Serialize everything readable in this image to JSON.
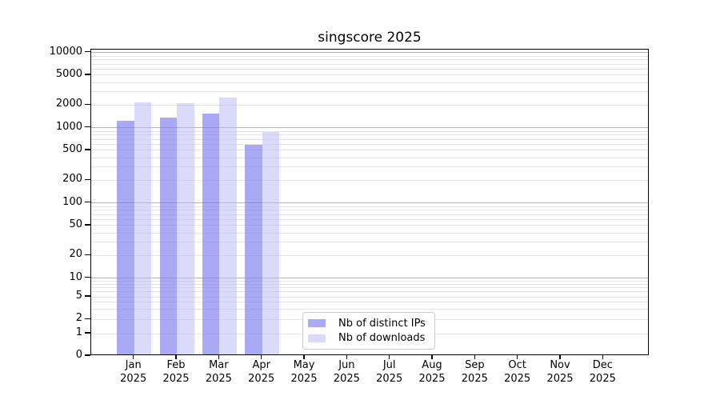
{
  "chart_data": {
    "type": "bar",
    "title": "singscore 2025",
    "xlabel": "",
    "ylabel": "",
    "y_scale": "symlog",
    "categories": [
      "Jan",
      "Feb",
      "Mar",
      "Apr",
      "May",
      "Jun",
      "Jul",
      "Aug",
      "Sep",
      "Oct",
      "Nov",
      "Dec"
    ],
    "category_year": "2025",
    "series": [
      {
        "name": "Nb of distinct IPs",
        "color": "rgba(124,124,238,0.65)",
        "values": [
          1250,
          1350,
          1550,
          600,
          null,
          null,
          null,
          null,
          null,
          null,
          null,
          null
        ]
      },
      {
        "name": "Nb of downloads",
        "color": "rgba(182,182,248,0.5)",
        "values": [
          2150,
          2100,
          2500,
          880,
          null,
          null,
          null,
          null,
          null,
          null,
          null,
          null
        ]
      }
    ],
    "y_ticks": [
      0,
      1,
      2,
      5,
      10,
      20,
      50,
      100,
      200,
      500,
      1000,
      2000,
      5000,
      10000
    ],
    "ylim": [
      0,
      10900
    ],
    "grid": "horizontal",
    "legend_position": "lower center",
    "colors": {
      "major_grid": "#b4b4b4",
      "minor_grid": "#e4e4e4",
      "spine": "#000000",
      "text": "#000000"
    }
  }
}
